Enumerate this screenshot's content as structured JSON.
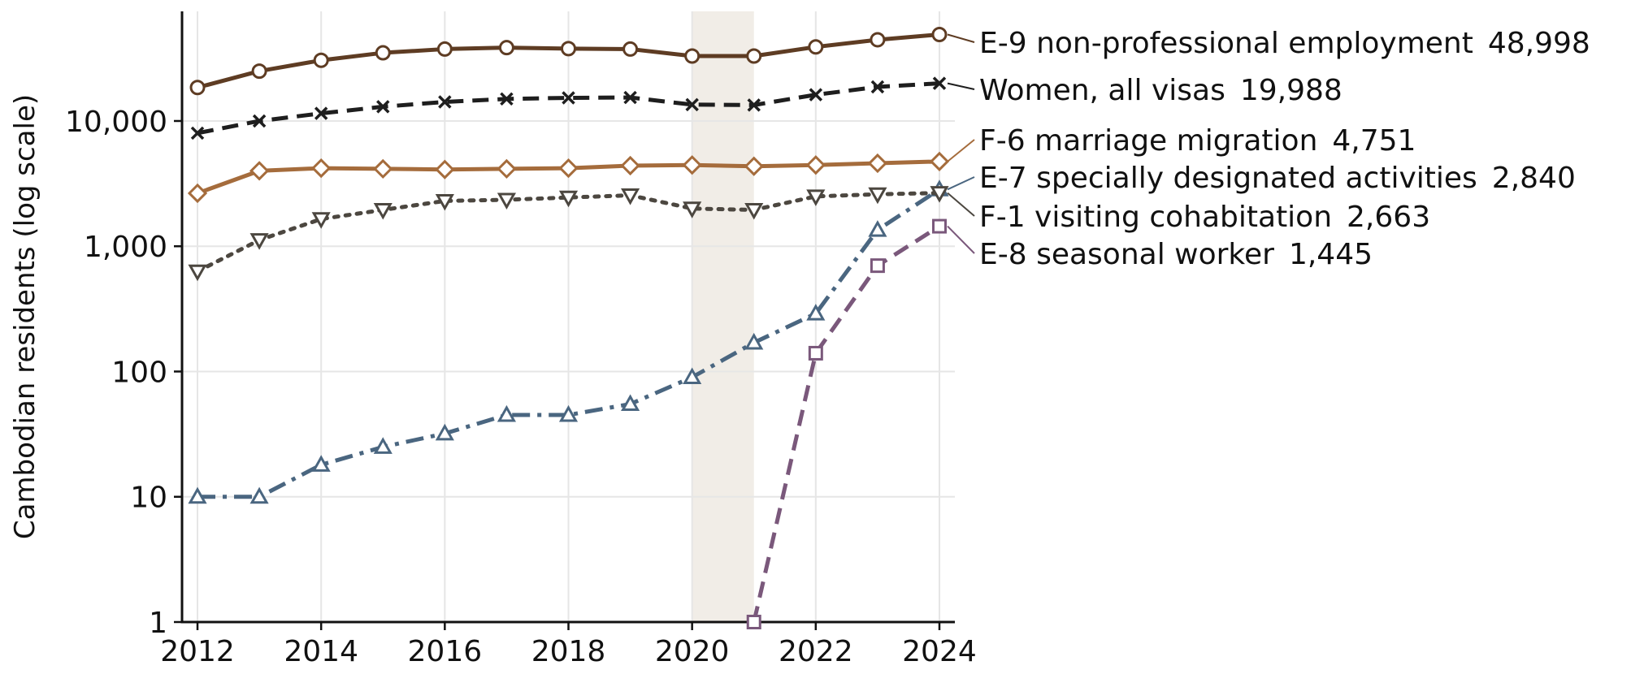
{
  "chart_data": {
    "type": "line",
    "ylabel": "Cambodian residents (log scale)",
    "xlabel": "",
    "title": "",
    "yscale": "log",
    "ylim": [
      1,
      75000
    ],
    "xlim": [
      2011.75,
      2024.25
    ],
    "grid": true,
    "shaded_region": {
      "x": [
        2020,
        2021
      ],
      "color": "#f1ede7"
    },
    "x_ticks": [
      2012,
      2014,
      2016,
      2018,
      2020,
      2022,
      2024
    ],
    "x_tick_labels": [
      "2012",
      "2014",
      "2016",
      "2018",
      "2020",
      "2022",
      "2024"
    ],
    "y_ticks": [
      1,
      10,
      100,
      1000,
      10000
    ],
    "y_tick_labels": [
      "1",
      "10",
      "100",
      "1,000",
      "10,000"
    ],
    "series": [
      {
        "name": "E-9 non-professional employment",
        "end_value_label": "48,998",
        "color": "#5e3c23",
        "dash": "solid",
        "marker": "circle",
        "x": [
          2012,
          2013,
          2014,
          2015,
          2016,
          2017,
          2018,
          2019,
          2020,
          2021,
          2022,
          2023,
          2024
        ],
        "values": [
          18500,
          25000,
          30500,
          35000,
          37500,
          38500,
          37800,
          37500,
          33000,
          33000,
          39000,
          44500,
          48998
        ]
      },
      {
        "name": "Women, all visas",
        "end_value_label": "19,988",
        "color": "#1e1e1e",
        "dash": "dashed",
        "marker": "x",
        "x": [
          2012,
          2013,
          2014,
          2015,
          2016,
          2017,
          2018,
          2019,
          2020,
          2021,
          2022,
          2023,
          2024
        ],
        "values": [
          8000,
          10000,
          11500,
          13000,
          14200,
          15000,
          15300,
          15400,
          13500,
          13400,
          16200,
          18700,
          19988
        ]
      },
      {
        "name": "F-6 marriage migration",
        "end_value_label": "4,751",
        "color": "#a56c3c",
        "dash": "solid",
        "marker": "diamond",
        "x": [
          2012,
          2013,
          2014,
          2015,
          2016,
          2017,
          2018,
          2019,
          2020,
          2021,
          2022,
          2023,
          2024
        ],
        "values": [
          2650,
          4000,
          4200,
          4150,
          4100,
          4150,
          4200,
          4400,
          4450,
          4350,
          4450,
          4600,
          4751
        ]
      },
      {
        "name": "E-7 specially designated activities",
        "end_value_label": "2,840",
        "color": "#4a6680",
        "dash": "dashdot",
        "marker": "triangle-up",
        "x": [
          2012,
          2013,
          2014,
          2015,
          2016,
          2017,
          2018,
          2019,
          2020,
          2021,
          2022,
          2023,
          2024
        ],
        "values": [
          10,
          10,
          18,
          25,
          32,
          45,
          45,
          55,
          90,
          170,
          290,
          1350,
          2840
        ]
      },
      {
        "name": "F-1 visiting cohabitation",
        "end_value_label": "2,663",
        "color": "#4c4740",
        "dash": "dotted",
        "marker": "triangle-down",
        "x": [
          2012,
          2013,
          2014,
          2015,
          2016,
          2017,
          2018,
          2019,
          2020,
          2021,
          2022,
          2023,
          2024
        ],
        "values": [
          630,
          1120,
          1650,
          1950,
          2300,
          2350,
          2450,
          2550,
          2000,
          1950,
          2500,
          2600,
          2663
        ]
      },
      {
        "name": "E-8 seasonal worker",
        "end_value_label": "1,445",
        "color": "#7a587b",
        "dash": "dashed",
        "marker": "square",
        "x": [
          2021,
          2022,
          2023,
          2024
        ],
        "values": [
          1,
          140,
          700,
          1445
        ]
      }
    ]
  }
}
